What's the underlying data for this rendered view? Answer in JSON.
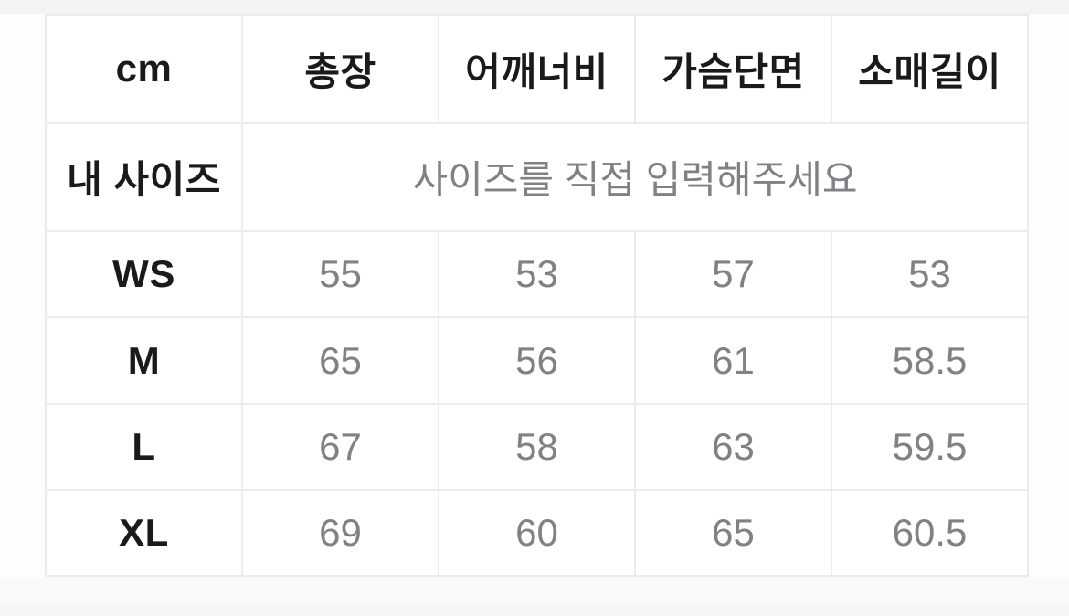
{
  "page": {
    "background": "#fdfdfd",
    "top_band_color": "#f2f3f4",
    "table_background": "#ffffff",
    "table_border_color": "#ebebec",
    "label_text_color": "#1a1a1a",
    "value_text_color": "#808184",
    "placeholder_text_color": "#8e9095"
  },
  "size_table": {
    "unit_header": "cm",
    "columns": [
      "총장",
      "어깨너비",
      "가슴단면",
      "소매길이"
    ],
    "my_size": {
      "label": "내 사이즈",
      "placeholder": "사이즈를 직접 입력해주세요"
    },
    "rows": [
      {
        "size": "WS",
        "values": [
          "55",
          "53",
          "57",
          "53"
        ]
      },
      {
        "size": "M",
        "values": [
          "65",
          "56",
          "61",
          "58.5"
        ]
      },
      {
        "size": "L",
        "values": [
          "67",
          "58",
          "63",
          "59.5"
        ]
      },
      {
        "size": "XL",
        "values": [
          "69",
          "60",
          "65",
          "60.5"
        ]
      }
    ]
  }
}
